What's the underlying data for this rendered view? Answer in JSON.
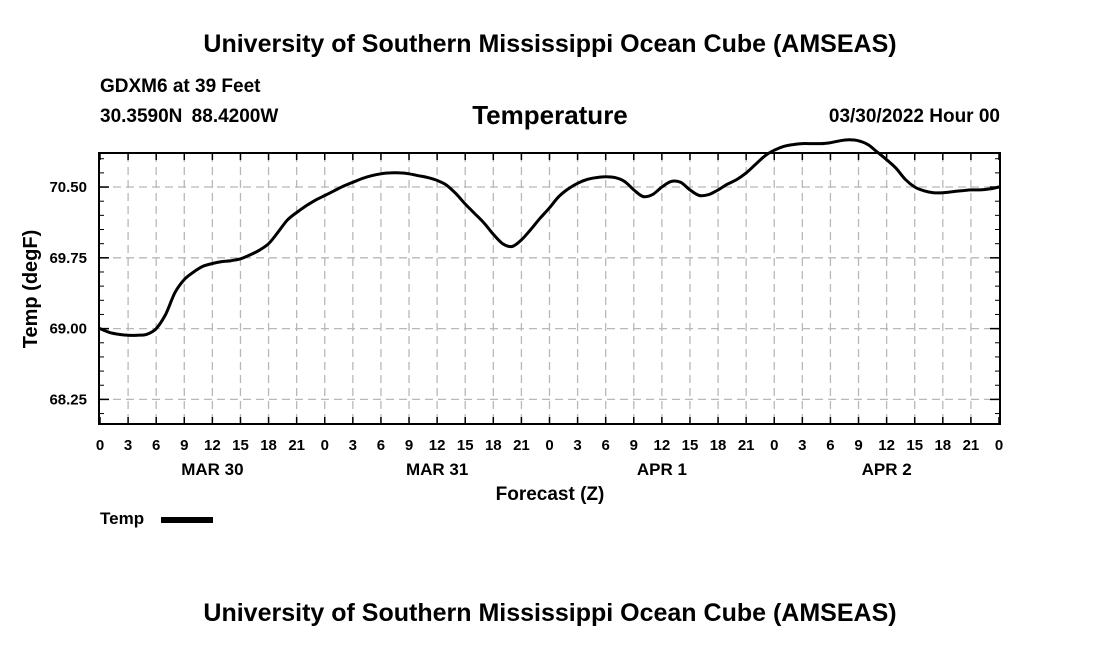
{
  "header": {
    "title": "University of Southern Mississippi Ocean Cube (AMSEAS)",
    "station": "GDXM6 at 39 Feet",
    "coordinates": "30.3590N  88.4200W",
    "datetime": "03/30/2022 Hour 00"
  },
  "footer": {
    "title": "University of Southern Mississippi Ocean Cube (AMSEAS)"
  },
  "legend": {
    "label": "Temp",
    "color": "#000000"
  },
  "chart_data": {
    "type": "line",
    "title": "Temperature",
    "xlabel": "Forecast (Z)",
    "ylabel": "Temp (degF)",
    "xlim": [
      0,
      96
    ],
    "ylim": [
      68.0,
      70.85
    ],
    "yticks": [
      68.25,
      69.0,
      69.75,
      70.5
    ],
    "ytick_labels": [
      "68.25",
      "69.00",
      "69.75",
      "70.50"
    ],
    "xticks": [
      0,
      3,
      6,
      9,
      12,
      15,
      18,
      21,
      24,
      27,
      30,
      33,
      36,
      39,
      42,
      45,
      48,
      51,
      54,
      57,
      60,
      63,
      66,
      69,
      72,
      75,
      78,
      81,
      84,
      87,
      90,
      93,
      96
    ],
    "xtick_labels": [
      "0",
      "3",
      "6",
      "9",
      "12",
      "15",
      "18",
      "21",
      "0",
      "3",
      "6",
      "9",
      "12",
      "15",
      "18",
      "21",
      "0",
      "3",
      "6",
      "9",
      "12",
      "15",
      "18",
      "21",
      "0",
      "3",
      "6",
      "9",
      "12",
      "15",
      "18",
      "21",
      "0"
    ],
    "date_labels": [
      {
        "x": 12,
        "label": "MAR 30"
      },
      {
        "x": 36,
        "label": "MAR 31"
      },
      {
        "x": 60,
        "label": "APR 1"
      },
      {
        "x": 84,
        "label": "APR 2"
      }
    ],
    "grid": true,
    "legend_position": "bottom-left",
    "series": [
      {
        "name": "Temp",
        "color": "#000000",
        "x": [
          0,
          1,
          2,
          3,
          4,
          5,
          6,
          7,
          8,
          9,
          10,
          11,
          12,
          13,
          14,
          15,
          16,
          17,
          18,
          19,
          20,
          21,
          22,
          23,
          24,
          25,
          26,
          27,
          28,
          29,
          30,
          31,
          32,
          33,
          34,
          35,
          36,
          37,
          38,
          39,
          40,
          41,
          42,
          43,
          44,
          45,
          46,
          47,
          48,
          49,
          50,
          51,
          52,
          53,
          54,
          55,
          56,
          57,
          58,
          59,
          60,
          61,
          62,
          63,
          64,
          65,
          66,
          67,
          68,
          69,
          70,
          71,
          72,
          73,
          74,
          75,
          76,
          77,
          78,
          79,
          80,
          81,
          82,
          83,
          84,
          85,
          86,
          87,
          88,
          89,
          90,
          91,
          92,
          93,
          94,
          95,
          96
        ],
        "values": [
          69.0,
          68.96,
          68.94,
          68.93,
          68.93,
          68.94,
          69.0,
          69.15,
          69.38,
          69.52,
          69.6,
          69.66,
          69.69,
          69.71,
          69.72,
          69.74,
          69.78,
          69.83,
          69.9,
          70.02,
          70.15,
          70.23,
          70.3,
          70.36,
          70.41,
          70.46,
          70.51,
          70.55,
          70.59,
          70.62,
          70.64,
          70.65,
          70.65,
          70.64,
          70.62,
          70.6,
          70.57,
          70.52,
          70.43,
          70.32,
          70.22,
          70.12,
          70.0,
          69.9,
          69.87,
          69.94,
          70.05,
          70.17,
          70.28,
          70.4,
          70.48,
          70.54,
          70.58,
          70.6,
          70.61,
          70.6,
          70.56,
          70.47,
          70.4,
          70.42,
          70.5,
          70.56,
          70.55,
          70.47,
          70.41,
          70.42,
          70.47,
          70.53,
          70.58,
          70.65,
          70.74,
          70.83,
          70.89,
          70.93,
          70.95,
          70.96,
          70.96,
          70.96,
          70.97,
          70.99,
          71.0,
          70.99,
          70.95,
          70.87,
          70.79,
          70.7,
          70.58,
          70.5,
          70.46,
          70.44,
          70.44,
          70.45,
          70.46,
          70.47,
          70.47,
          70.48,
          70.5
        ]
      }
    ]
  }
}
